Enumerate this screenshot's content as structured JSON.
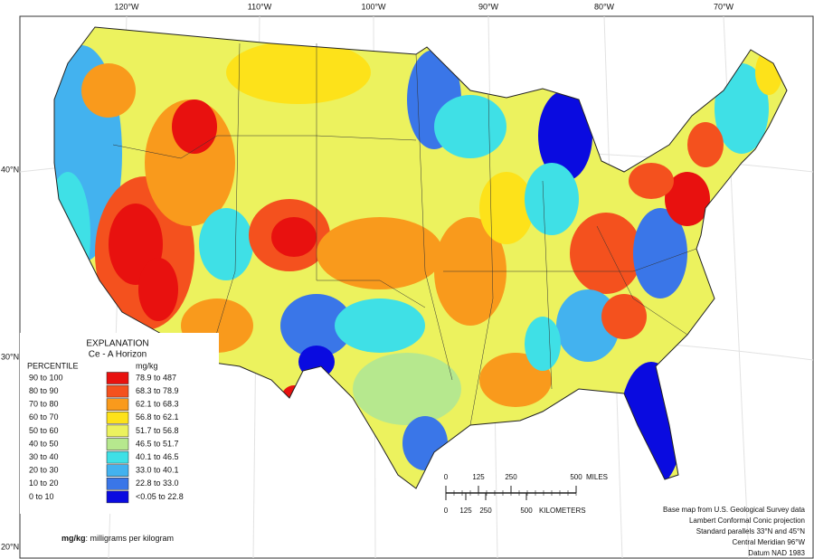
{
  "longitude_labels": [
    "120°W",
    "110°W",
    "100°W",
    "90°W",
    "80°W",
    "70°W"
  ],
  "latitude_labels": [
    "40°N",
    "30°N",
    "20°N"
  ],
  "legend": {
    "title": "EXPLANATION",
    "subtitle": "Ce - A Horizon",
    "percentile_header": "PERCENTILE",
    "unit_header": "mg/kg",
    "rows": [
      {
        "percentile": "90 to 100",
        "range": "78.9 to 487",
        "color": "#e8110f"
      },
      {
        "percentile": "80 to 90",
        "range": "68.3 to 78.9",
        "color": "#f4511e"
      },
      {
        "percentile": "70 to 80",
        "range": "62.1 to 68.3",
        "color": "#f99a1c"
      },
      {
        "percentile": "60 to 70",
        "range": "56.8 to 62.1",
        "color": "#fde21a"
      },
      {
        "percentile": "50 to 60",
        "range": "51.7 to 56.8",
        "color": "#ecf25e"
      },
      {
        "percentile": "40 to 50",
        "range": "46.5 to 51.7",
        "color": "#b6e88e"
      },
      {
        "percentile": "30 to 40",
        "range": "40.1 to 46.5",
        "color": "#3fe0e6"
      },
      {
        "percentile": "20 to 30",
        "range": "33.0 to 40.1",
        "color": "#43b2ef"
      },
      {
        "percentile": "10 to 20",
        "range": "22.8 to 33.0",
        "color": "#3a76e8"
      },
      {
        "percentile": "0 to 10",
        "range": "<0.05 to 22.8",
        "color": "#0a0be0"
      }
    ]
  },
  "scale_bar": {
    "miles_ticks": [
      "0",
      "125",
      "250",
      "500"
    ],
    "miles_unit": "MILES",
    "km_ticks": [
      "0",
      "125",
      "250",
      "500"
    ],
    "km_unit": "KILOMETERS"
  },
  "credits": [
    "Base map from U.S. Geological Survey data",
    "Lambert Conformal Conic projection",
    "Standard parallels 33°N and 45°N",
    "Central Meridian 96°W",
    "Datum NAD 1983"
  ],
  "footnote": {
    "term": "mg/kg",
    "text": ": milligrams per kilogram"
  }
}
